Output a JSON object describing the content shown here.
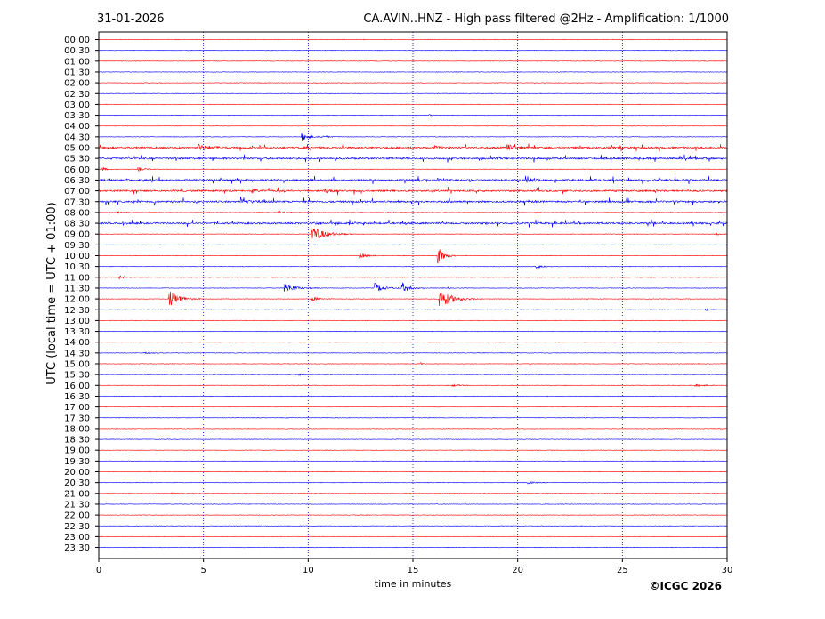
{
  "header": {
    "date": "31-01-2026",
    "title": "CA.AVIN..HNZ - High pass filtered @2Hz - Amplification: 1/1000"
  },
  "footer": {
    "copyright": "©ICGC 2026"
  },
  "colors": {
    "odd_trace": "#0000ff",
    "even_trace": "#ff0000",
    "grid": "#0000aa",
    "frame": "#000000"
  },
  "chart_data": {
    "type": "line",
    "subtype": "helicorder",
    "xlabel": "time in minutes",
    "ylabel": "UTC (local time = UTC + 01:00)",
    "xlim": [
      0,
      30
    ],
    "xticks": [
      "0",
      "5",
      "10",
      "15",
      "20",
      "25",
      "30"
    ],
    "vertical_gridlines_at_minutes": [
      5,
      10,
      15,
      20,
      25
    ],
    "grid_style": "dotted vertical",
    "trace_interval_minutes": 30,
    "trace_color_pattern": [
      "red",
      "blue"
    ],
    "rows": [
      "00:00",
      "00:30",
      "01:00",
      "01:30",
      "02:00",
      "02:30",
      "03:00",
      "03:30",
      "04:00",
      "04:30",
      "05:00",
      "05:30",
      "06:00",
      "06:30",
      "07:00",
      "07:30",
      "08:00",
      "08:30",
      "09:00",
      "09:30",
      "10:00",
      "10:30",
      "11:00",
      "11:30",
      "12:00",
      "12:30",
      "13:00",
      "13:30",
      "14:00",
      "14:30",
      "15:00",
      "15:30",
      "16:00",
      "16:30",
      "17:00",
      "17:30",
      "18:00",
      "18:30",
      "19:00",
      "19:30",
      "20:00",
      "20:30",
      "21:00",
      "21:30",
      "22:00",
      "22:30",
      "23:00",
      "23:30"
    ],
    "events": [
      {
        "row": "03:30",
        "minute": 15.8,
        "amplitude": 0.2,
        "duration": 0.1
      },
      {
        "row": "04:30",
        "minute": 9.7,
        "amplitude": 1.0,
        "duration": 0.6
      },
      {
        "row": "04:30",
        "minute": 10.7,
        "amplitude": 0.3,
        "duration": 0.4
      },
      {
        "row": "05:00",
        "minute": 4.8,
        "amplitude": 0.8,
        "duration": 0.7
      },
      {
        "row": "05:00",
        "minute": 19.5,
        "amplitude": 0.9,
        "duration": 0.4
      },
      {
        "row": "05:00",
        "minute": 16.0,
        "amplitude": 0.3,
        "duration": 0.8
      },
      {
        "row": "06:00",
        "minute": 1.9,
        "amplitude": 0.45,
        "duration": 0.5
      },
      {
        "row": "06:00",
        "minute": 0.2,
        "amplitude": 0.4,
        "duration": 0.3
      },
      {
        "row": "06:30",
        "minute": 20.6,
        "amplitude": 0.45,
        "duration": 0.6
      },
      {
        "row": "06:30",
        "minute": 16.2,
        "amplitude": 0.3,
        "duration": 0.2
      },
      {
        "row": "07:00",
        "minute": 7.3,
        "amplitude": 0.55,
        "duration": 0.3
      },
      {
        "row": "07:00",
        "minute": 10.8,
        "amplitude": 0.45,
        "duration": 0.6
      },
      {
        "row": "07:30",
        "minute": 6.8,
        "amplitude": 0.5,
        "duration": 0.8
      },
      {
        "row": "08:00",
        "minute": 0.9,
        "amplitude": 0.3,
        "duration": 0.3
      },
      {
        "row": "08:00",
        "minute": 8.6,
        "amplitude": 0.3,
        "duration": 0.3
      },
      {
        "row": "08:30",
        "minute": 10.3,
        "amplitude": 0.3,
        "duration": 0.4
      },
      {
        "row": "09:00",
        "minute": 10.2,
        "amplitude": 2.1,
        "duration": 0.9
      },
      {
        "row": "09:00",
        "minute": 29.5,
        "amplitude": 0.25,
        "duration": 0.3
      },
      {
        "row": "10:00",
        "minute": 12.5,
        "amplitude": 0.7,
        "duration": 0.4
      },
      {
        "row": "10:00",
        "minute": 16.2,
        "amplitude": 2.3,
        "duration": 0.4
      },
      {
        "row": "10:30",
        "minute": 20.9,
        "amplitude": 0.45,
        "duration": 0.5
      },
      {
        "row": "11:00",
        "minute": 1.0,
        "amplitude": 0.4,
        "duration": 0.05
      },
      {
        "row": "11:00",
        "minute": 1.2,
        "amplitude": 0.3,
        "duration": 0.05
      },
      {
        "row": "11:30",
        "minute": 8.9,
        "amplitude": 1.1,
        "duration": 0.8
      },
      {
        "row": "11:30",
        "minute": 13.2,
        "amplitude": 1.3,
        "duration": 0.6
      },
      {
        "row": "11:30",
        "minute": 14.5,
        "amplitude": 1.4,
        "duration": 0.5
      },
      {
        "row": "11:30",
        "minute": 16.7,
        "amplitude": 0.3,
        "duration": 0.1
      },
      {
        "row": "12:00",
        "minute": 3.4,
        "amplitude": 2.2,
        "duration": 0.7
      },
      {
        "row": "12:00",
        "minute": 10.2,
        "amplitude": 0.55,
        "duration": 0.5
      },
      {
        "row": "12:00",
        "minute": 16.3,
        "amplitude": 2.5,
        "duration": 0.9
      },
      {
        "row": "12:30",
        "minute": 29.0,
        "amplitude": 0.2,
        "duration": 0.3
      },
      {
        "row": "14:30",
        "minute": 2.2,
        "amplitude": 0.2,
        "duration": 0.5
      },
      {
        "row": "15:00",
        "minute": 15.4,
        "amplitude": 0.3,
        "duration": 0.05
      },
      {
        "row": "15:30",
        "minute": 9.6,
        "amplitude": 0.2,
        "duration": 0.2
      },
      {
        "row": "16:00",
        "minute": 16.9,
        "amplitude": 0.25,
        "duration": 0.5
      },
      {
        "row": "16:00",
        "minute": 28.5,
        "amplitude": 0.3,
        "duration": 0.7
      },
      {
        "row": "20:30",
        "minute": 20.5,
        "amplitude": 0.3,
        "duration": 0.5
      },
      {
        "row": "21:00",
        "minute": 3.5,
        "amplitude": 0.15,
        "duration": 0.4
      }
    ],
    "noisy_rows": [
      "05:00",
      "05:30",
      "06:30",
      "07:00",
      "07:30",
      "08:30"
    ]
  }
}
